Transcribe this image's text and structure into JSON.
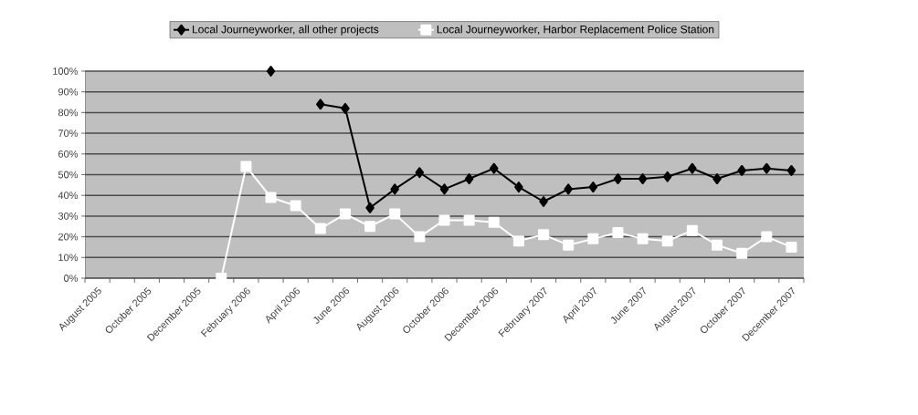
{
  "chart_data": {
    "type": "line",
    "categories": [
      "August 2005",
      null,
      "October 2005",
      null,
      "December 2005",
      null,
      "February 2006",
      null,
      "April 2006",
      null,
      "June 2006",
      null,
      "August 2006",
      null,
      "October 2006",
      null,
      "December 2006",
      null,
      "February 2007",
      null,
      "April 2007",
      null,
      "June 2007",
      null,
      "August 2007",
      null,
      "October 2007",
      null,
      "December 2007"
    ],
    "series": [
      {
        "name": "Local Journeyworker, all other projects",
        "color": "#000000",
        "marker": "diamond",
        "values": [
          null,
          null,
          null,
          null,
          null,
          null,
          null,
          100,
          null,
          84,
          82,
          34,
          43,
          51,
          43,
          48,
          53,
          44,
          37,
          43,
          44,
          48,
          48,
          49,
          53,
          48,
          52,
          53,
          52
        ]
      },
      {
        "name": "Local Journeyworker, Harbor Replacement Police Station",
        "color": "#ffffff",
        "marker": "square",
        "values": [
          null,
          null,
          null,
          null,
          null,
          0,
          54,
          39,
          35,
          24,
          31,
          25,
          31,
          20,
          28,
          28,
          27,
          18,
          21,
          16,
          19,
          22,
          19,
          18,
          23,
          16,
          12,
          20,
          15
        ]
      }
    ],
    "ylim": [
      0,
      100
    ],
    "yticks": [
      {
        "value": 0,
        "label": "0%"
      },
      {
        "value": 10,
        "label": "10%"
      },
      {
        "value": 20,
        "label": "20%"
      },
      {
        "value": 30,
        "label": "30%"
      },
      {
        "value": 40,
        "label": "40%"
      },
      {
        "value": 50,
        "label": "50%"
      },
      {
        "value": 60,
        "label": "60%"
      },
      {
        "value": 70,
        "label": "70%"
      },
      {
        "value": 80,
        "label": "80%"
      },
      {
        "value": 90,
        "label": "90%"
      },
      {
        "value": 100,
        "label": "100%"
      }
    ],
    "grid": "y",
    "legend": "top"
  }
}
